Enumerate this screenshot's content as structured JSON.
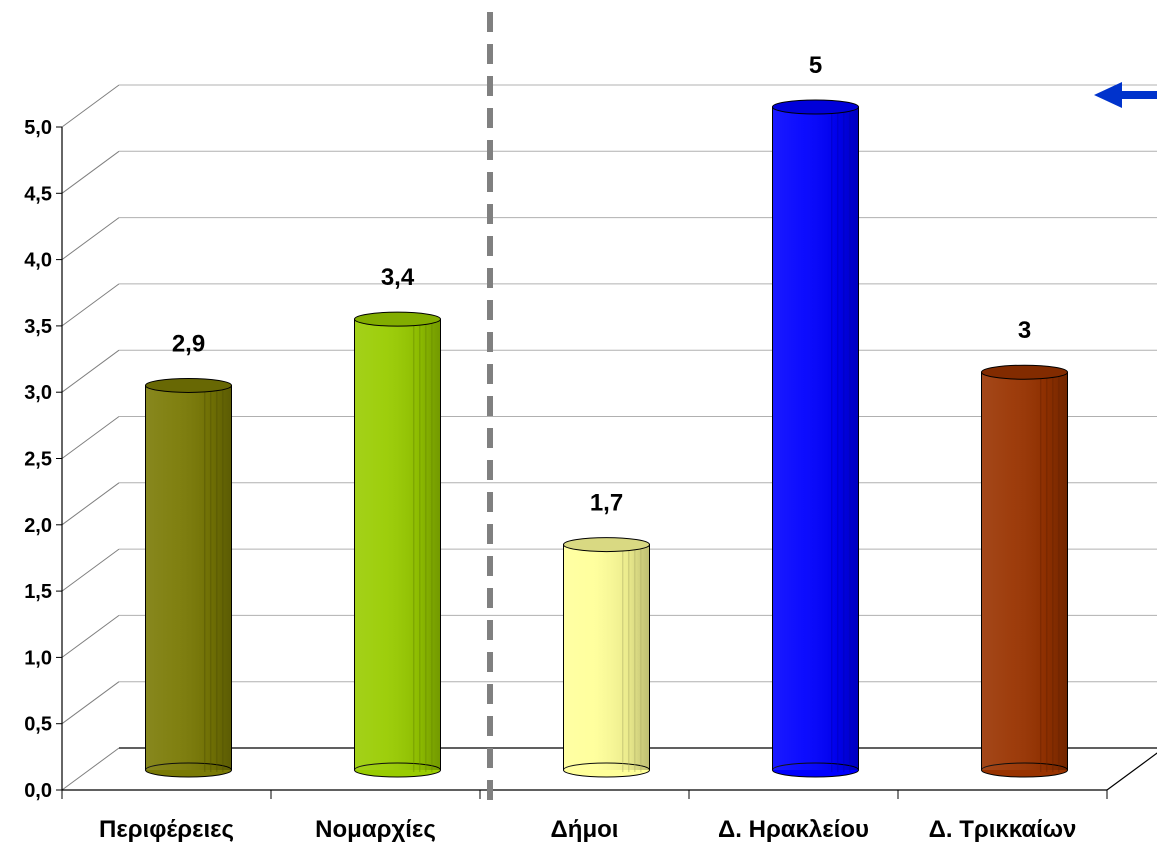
{
  "chart_data": {
    "type": "bar",
    "categories": [
      "Περιφέρειες",
      "Νομαρχίες",
      "Δήμοι",
      "Δ. Ηρακλείου",
      "Δ. Τρικκαίων"
    ],
    "values": [
      2.9,
      3.4,
      1.7,
      5,
      3
    ],
    "value_labels": [
      "2,9",
      "3,4",
      "1,7",
      "5",
      "3"
    ],
    "colors": [
      "#7a7a05",
      "#99cc00",
      "#ffff99",
      "#0000ff",
      "#993300"
    ],
    "y_ticks": [
      "0,0",
      "0,5",
      "1,0",
      "1,5",
      "2,0",
      "2,5",
      "3,0",
      "3,5",
      "4,0",
      "4,5",
      "5,0"
    ],
    "ylim": [
      0,
      5
    ],
    "grid": true,
    "style": "3d-cylinder",
    "separator": "dashed vertical line between Νομαρχίες and Δήμοι",
    "annotation_icon": "arrow-left-icon",
    "annotation_color": "#0033cc"
  }
}
